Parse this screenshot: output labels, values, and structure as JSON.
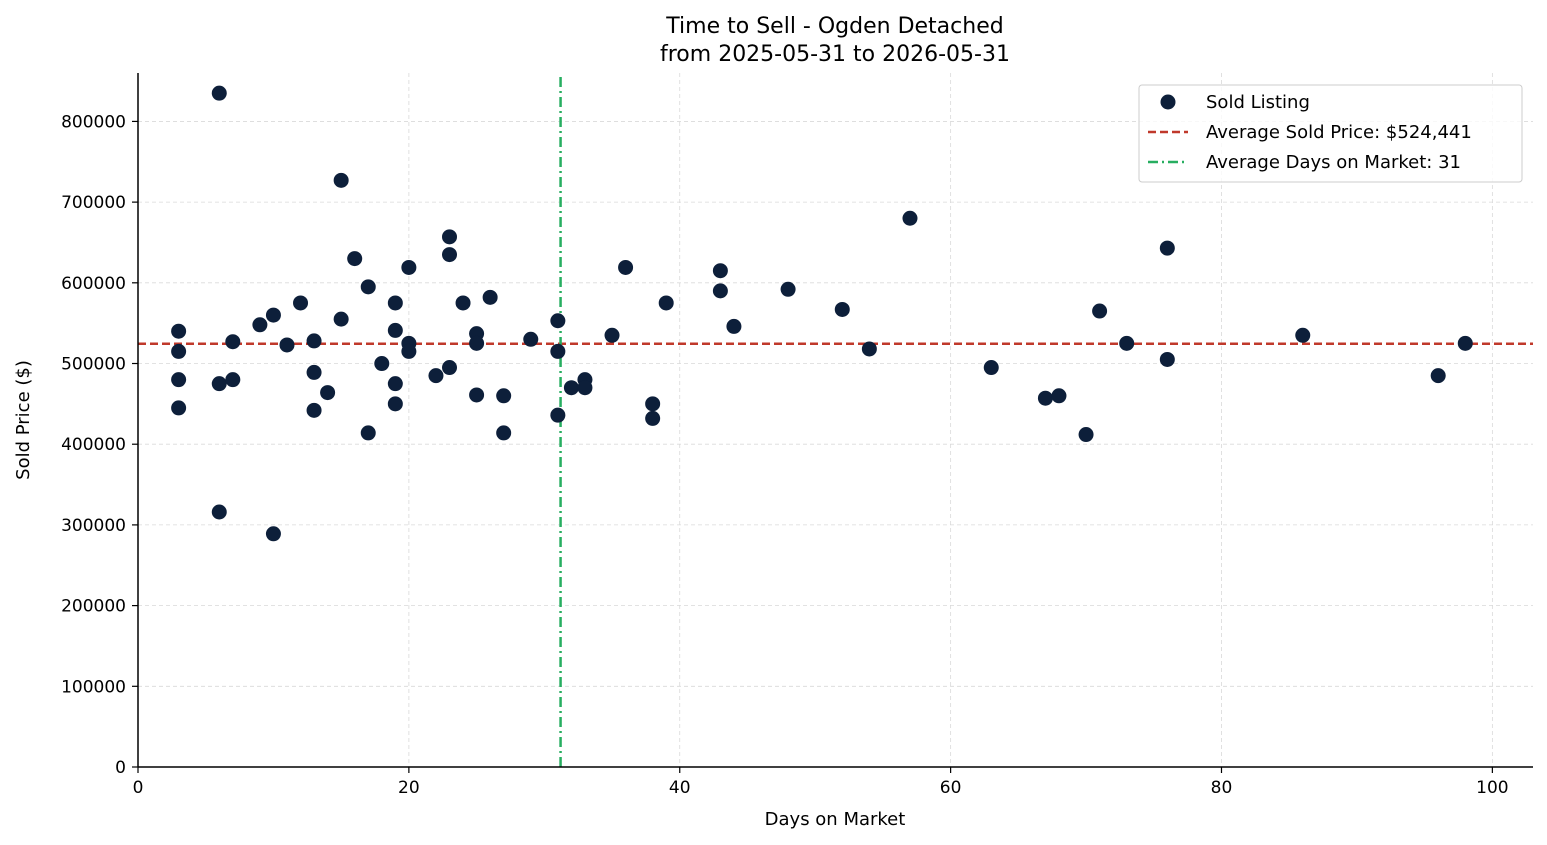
{
  "chart_data": {
    "type": "scatter",
    "title": "Time to Sell - Ogden Detached",
    "subtitle": "from 2025-05-31 to 2026-05-31",
    "xlabel": "Days on Market",
    "ylabel": "Sold Price ($)",
    "xlim": [
      0,
      103
    ],
    "ylim": [
      0,
      860000
    ],
    "xticks": [
      0,
      20,
      40,
      60,
      80,
      100
    ],
    "yticks": [
      0,
      100000,
      200000,
      300000,
      400000,
      500000,
      600000,
      700000,
      800000
    ],
    "grid": true,
    "legend_position": "top-right",
    "colors": {
      "points": "#0d1f3a",
      "avg_price": "#c0392b",
      "avg_days": "#27ae60"
    },
    "legend": [
      {
        "label": "Sold Listing",
        "kind": "marker"
      },
      {
        "label": "Average Sold Price: $524,441",
        "kind": "dashed"
      },
      {
        "label": "Average Days on Market: 31",
        "kind": "dashdot"
      }
    ],
    "series": [
      {
        "name": "Sold Listing",
        "points": [
          [
            3,
            540000
          ],
          [
            3,
            515000
          ],
          [
            3,
            480000
          ],
          [
            3,
            445000
          ],
          [
            6,
            835000
          ],
          [
            6,
            475000
          ],
          [
            6,
            316000
          ],
          [
            7,
            527000
          ],
          [
            7,
            480000
          ],
          [
            9,
            548000
          ],
          [
            10,
            560000
          ],
          [
            10,
            289000
          ],
          [
            11,
            523000
          ],
          [
            12,
            575000
          ],
          [
            13,
            528000
          ],
          [
            13,
            489000
          ],
          [
            13,
            442000
          ],
          [
            14,
            464000
          ],
          [
            15,
            727000
          ],
          [
            15,
            555000
          ],
          [
            16,
            630000
          ],
          [
            17,
            595000
          ],
          [
            17,
            414000
          ],
          [
            18,
            500000
          ],
          [
            19,
            575000
          ],
          [
            19,
            541000
          ],
          [
            19,
            475000
          ],
          [
            19,
            450000
          ],
          [
            20,
            619000
          ],
          [
            20,
            525000
          ],
          [
            20,
            515000
          ],
          [
            22,
            485000
          ],
          [
            23,
            657000
          ],
          [
            23,
            635000
          ],
          [
            23,
            495000
          ],
          [
            24,
            575000
          ],
          [
            25,
            537000
          ],
          [
            25,
            525000
          ],
          [
            25,
            461000
          ],
          [
            26,
            582000
          ],
          [
            27,
            460000
          ],
          [
            27,
            414000
          ],
          [
            29,
            530000
          ],
          [
            31,
            553000
          ],
          [
            31,
            515000
          ],
          [
            31,
            436000
          ],
          [
            32,
            470000
          ],
          [
            33,
            480000
          ],
          [
            33,
            470000
          ],
          [
            35,
            535000
          ],
          [
            36,
            619000
          ],
          [
            38,
            450000
          ],
          [
            38,
            432000
          ],
          [
            39,
            575000
          ],
          [
            43,
            615000
          ],
          [
            43,
            590000
          ],
          [
            44,
            546000
          ],
          [
            48,
            592000
          ],
          [
            52,
            567000
          ],
          [
            54,
            518000
          ],
          [
            57,
            680000
          ],
          [
            63,
            495000
          ],
          [
            67,
            457000
          ],
          [
            68,
            460000
          ],
          [
            70,
            412000
          ],
          [
            71,
            565000
          ],
          [
            73,
            525000
          ],
          [
            76,
            643000
          ],
          [
            76,
            505000
          ],
          [
            86,
            535000
          ],
          [
            96,
            485000
          ],
          [
            98,
            525000
          ]
        ]
      }
    ],
    "avg_price": 524441,
    "avg_days": 31.2
  }
}
